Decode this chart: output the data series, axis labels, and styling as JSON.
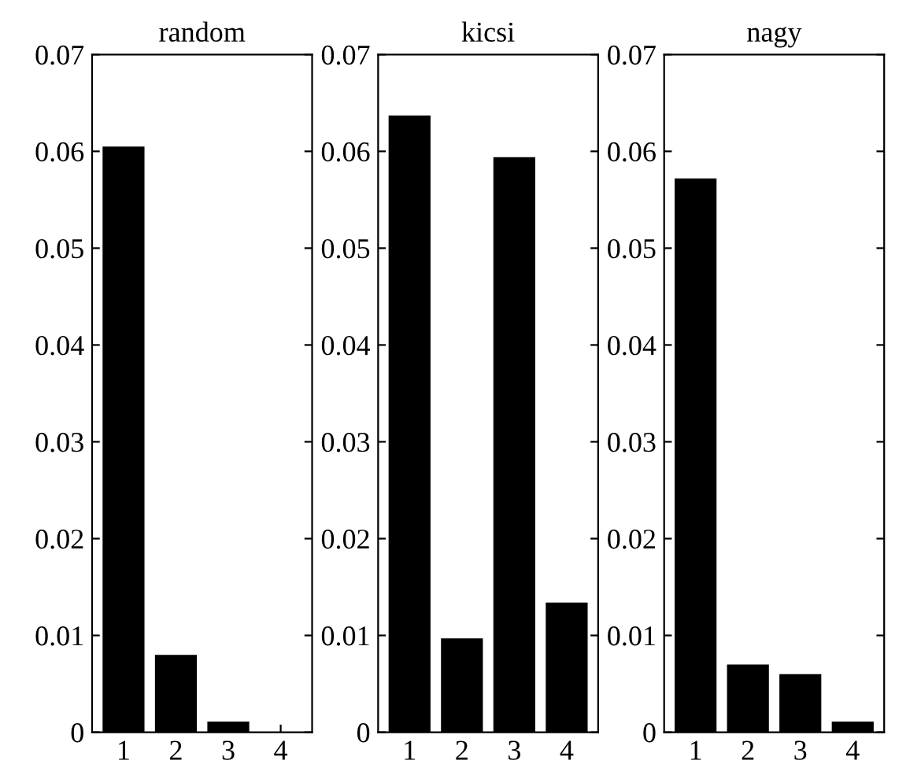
{
  "chart_data": [
    {
      "type": "bar",
      "title": "random",
      "categories": [
        "1",
        "2",
        "3",
        "4"
      ],
      "values": [
        0.0605,
        0.008,
        0.0011,
        0
      ],
      "color": "#000000",
      "ylim": [
        0,
        0.07
      ],
      "yticks": [
        0,
        0.01,
        0.02,
        0.03,
        0.04,
        0.05,
        0.06,
        0.07
      ],
      "grid": false
    },
    {
      "type": "bar",
      "title": "kicsi",
      "categories": [
        "1",
        "2",
        "3",
        "4"
      ],
      "values": [
        0.0637,
        0.0097,
        0.0594,
        0.0134
      ],
      "color": "#000000",
      "ylim": [
        0,
        0.07
      ],
      "yticks": [
        0,
        0.01,
        0.02,
        0.03,
        0.04,
        0.05,
        0.06,
        0.07
      ],
      "grid": false
    },
    {
      "type": "bar",
      "title": "nagy",
      "categories": [
        "1",
        "2",
        "3",
        "4"
      ],
      "values": [
        0.0572,
        0.007,
        0.006,
        0.0011
      ],
      "color": "#000000",
      "ylim": [
        0,
        0.07
      ],
      "yticks": [
        0,
        0.01,
        0.02,
        0.03,
        0.04,
        0.05,
        0.06,
        0.07
      ],
      "grid": false
    }
  ]
}
